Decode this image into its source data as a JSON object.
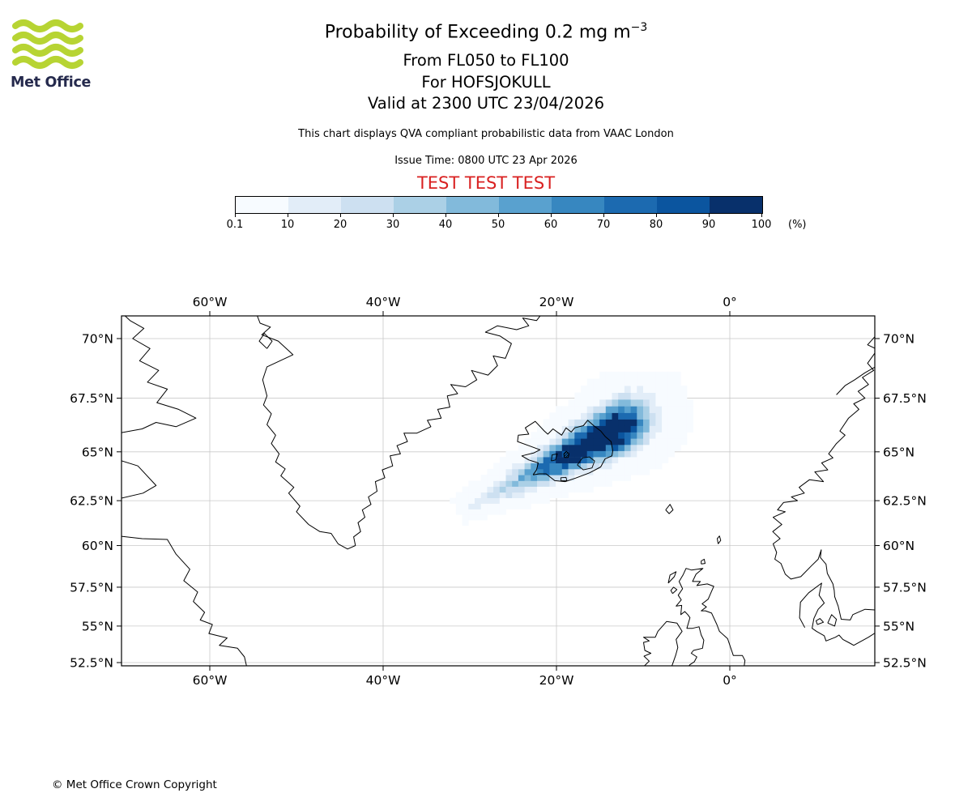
{
  "logo": {
    "text": "Met Office",
    "green": "#b7d433",
    "text_color": "#252a4d"
  },
  "header": {
    "title_main": "Probability of Exceeding 0.2 mg m",
    "title_sup": "−3",
    "subtitle1": "From FL050 to FL100",
    "subtitle2": "For HOFSJOKULL",
    "subtitle3": "Valid at 2300 UTC 23/04/2026",
    "note": "This chart displays QVA compliant probabilistic data from VAAC London",
    "issue_time": "Issue Time: 0800 UTC 23 Apr 2026",
    "test_banner": "TEST TEST TEST",
    "test_color": "#d92121"
  },
  "colorbar": {
    "tick_labels": [
      "0.1",
      "10",
      "20",
      "30",
      "40",
      "50",
      "60",
      "70",
      "80",
      "90",
      "100"
    ],
    "unit": "(%)",
    "colors": [
      "#f7fbff",
      "#e2edf8",
      "#cde0f1",
      "#abd0e6",
      "#82badb",
      "#59a1cf",
      "#3787c0",
      "#1c6ab0",
      "#0b559f",
      "#08306b"
    ]
  },
  "map": {
    "lon_ticks": [
      {
        "value": -60,
        "label": "60°W"
      },
      {
        "value": -40,
        "label": "40°W"
      },
      {
        "value": -20,
        "label": "20°W"
      },
      {
        "value": 0,
        "label": "0°"
      }
    ],
    "lat_ticks": [
      {
        "value": 70,
        "label": "70°N"
      },
      {
        "value": 67.5,
        "label": "67.5°N"
      },
      {
        "value": 65,
        "label": "65°N"
      },
      {
        "value": 62.5,
        "label": "62.5°N"
      },
      {
        "value": 60,
        "label": "60°N"
      },
      {
        "value": 57.5,
        "label": "57.5°N"
      },
      {
        "value": 55,
        "label": "55°N"
      },
      {
        "value": 52.5,
        "label": "52.5°N"
      }
    ]
  },
  "footer": {
    "copyright": "© Met Office Crown Copyright"
  },
  "chart_data": {
    "type": "heatmap",
    "title": "Probability of Exceeding 0.2 mg m-3, FL050-FL100, HOFSJOKULL, valid 2300 UTC 23/04/2026",
    "units": "%",
    "levels_percent": [
      0.1,
      10,
      20,
      30,
      40,
      50,
      60,
      70,
      80,
      90,
      100
    ],
    "colormap": "Blues (10 discrete bins, white at 0.1-10% to dark navy at 90-100%)",
    "projection": "mercator",
    "map_extent": {
      "lon_min": -70.2,
      "lon_max": 16.7,
      "lat_min": 52.2,
      "lat_max": 70.9
    },
    "lon_gridlines": [
      -60,
      -40,
      -20,
      0
    ],
    "lat_gridlines": [
      70,
      67.5,
      65,
      62.5,
      60,
      57.5,
      55,
      52.5
    ],
    "source_volcano": {
      "name": "HOFSJOKULL",
      "lon": -18.85,
      "lat": 64.85,
      "marker": "black hatched glacier outline"
    },
    "plume": {
      "description": "Gridded SW-NE elongated exceedance-probability plume: scattered near-white cells in the SW tail near 31W/62N, rising through light and mid blues southwest of Iceland, with a dark 90-100% core over and northeast of Iceland near 14W/66N, fading to light blue at the NE tip near 7W/67.4N.",
      "axis": {
        "from": {
          "lon": -31.0,
          "lat": 62.0
        },
        "to": {
          "lon": -6.5,
          "lat": 67.6
        }
      },
      "peak": {
        "lon": -13.5,
        "lat": 66.0,
        "percent": 100
      },
      "cell_deg": {
        "lon": 0.72,
        "lat": 0.3
      },
      "amp": 135,
      "sigma0": 0.6,
      "sigma_slope": 1.3,
      "w_lower": 0.42,
      "w_upper": 0.13,
      "axis_peak_t": 0.72,
      "lat_scale": 2.3,
      "jitter": [
        0.78,
        0.45
      ]
    }
  }
}
